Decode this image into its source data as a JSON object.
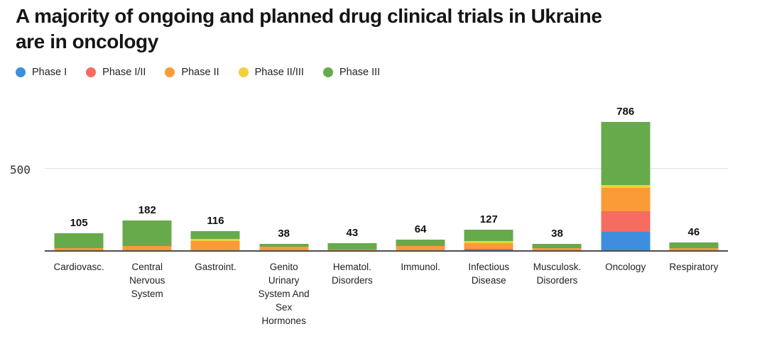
{
  "title": "A majority of ongoing and planned drug clinical trials in Ukraine\nare in oncology",
  "legend": {
    "items": [
      {
        "label": "Phase I",
        "color": "#3e8edd"
      },
      {
        "label": "Phase I/II",
        "color": "#f66c60"
      },
      {
        "label": "Phase II",
        "color": "#fb9b38"
      },
      {
        "label": "Phase II/III",
        "color": "#f0d03c"
      },
      {
        "label": "Phase III",
        "color": "#67aa4c"
      }
    ]
  },
  "axis": {
    "ytick_label": "500",
    "ytick_value": 500,
    "ylim": [
      0,
      935
    ],
    "gridline_color": "#e2e2e2",
    "baseline_color": "#4d4d4d"
  },
  "chart_data": {
    "type": "bar",
    "stacked": true,
    "title": "A majority of ongoing and planned drug clinical trials in Ukraine are in oncology",
    "xlabel": "",
    "ylabel": "",
    "legend_position": "top",
    "grid": "single-horizontal-line-at-500",
    "categories": [
      "Cardiovasc.",
      "Central\nNervous\nSystem",
      "Gastroint.",
      "Genito\nUrinary\nSystem And\nSex\nHormones",
      "Hematol.\nDisorders",
      "Immunol.",
      "Infectious\nDisease",
      "Musculosk.\nDisorders",
      "Oncology",
      "Respiratory"
    ],
    "totals": [
      105,
      182,
      116,
      38,
      43,
      64,
      127,
      38,
      786,
      46
    ],
    "series": [
      {
        "name": "Phase I",
        "color": "#3e8edd",
        "values": [
          0,
          0,
          0,
          0,
          0,
          0,
          5,
          0,
          111,
          0
        ]
      },
      {
        "name": "Phase I/II",
        "color": "#f66c60",
        "values": [
          0,
          0,
          0,
          0,
          0,
          0,
          5,
          0,
          127,
          0
        ]
      },
      {
        "name": "Phase II",
        "color": "#fb9b38",
        "values": [
          15,
          25,
          58,
          20,
          3,
          26,
          33,
          13,
          146,
          13
        ]
      },
      {
        "name": "Phase II/III",
        "color": "#f0d03c",
        "values": [
          0,
          0,
          12,
          0,
          0,
          0,
          15,
          0,
          17,
          0
        ]
      },
      {
        "name": "Phase III",
        "color": "#67aa4c",
        "values": [
          90,
          157,
          46,
          18,
          40,
          38,
          69,
          25,
          385,
          33
        ]
      }
    ]
  }
}
